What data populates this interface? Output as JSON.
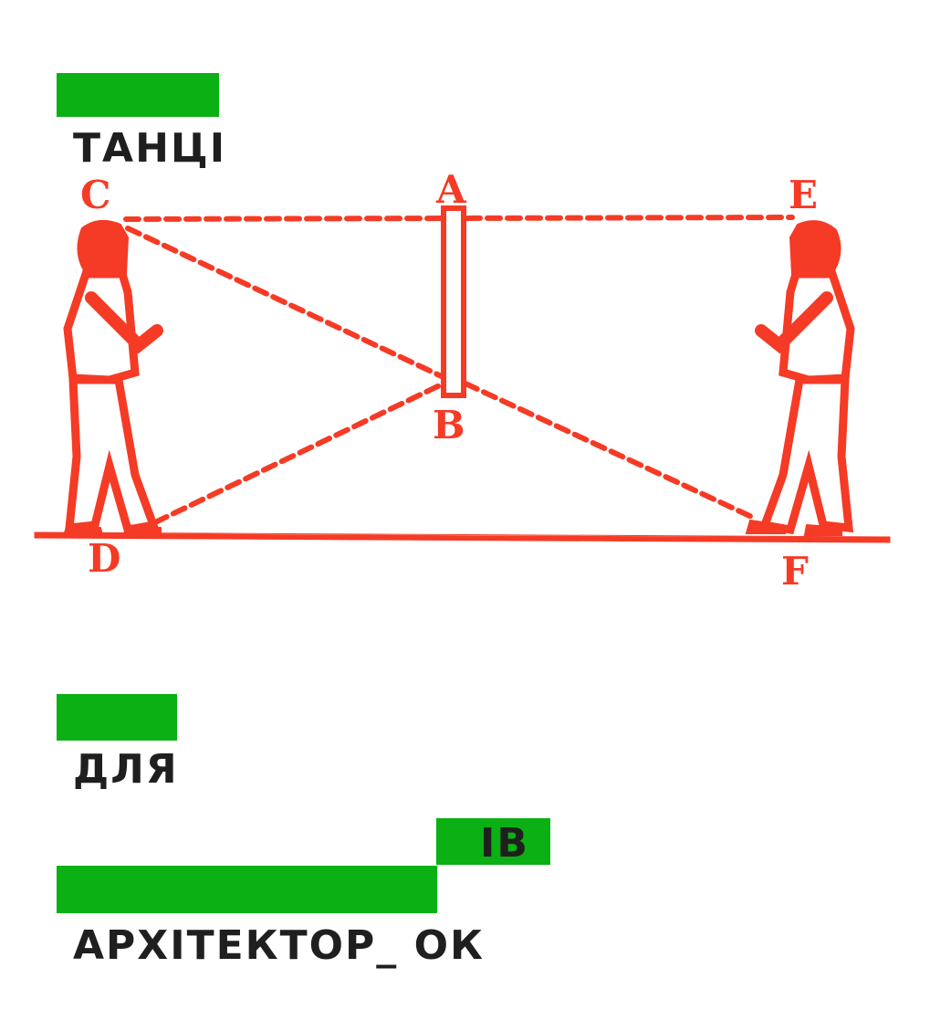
{
  "poster": {
    "word1": "ТАНЦІ",
    "word2": "ДЛЯ",
    "word3_suffix": "ІВ",
    "word3": "АРХІТЕКТОР_ ОК"
  },
  "illustration": {
    "labels": {
      "a": "A",
      "b": "B",
      "c": "C",
      "d": "D",
      "e": "E",
      "f": "F"
    }
  },
  "colors": {
    "accent_green": "#0bb014",
    "drawing_red": "#f53b25",
    "text": "#1f1f1f",
    "background": "#ffffff"
  }
}
